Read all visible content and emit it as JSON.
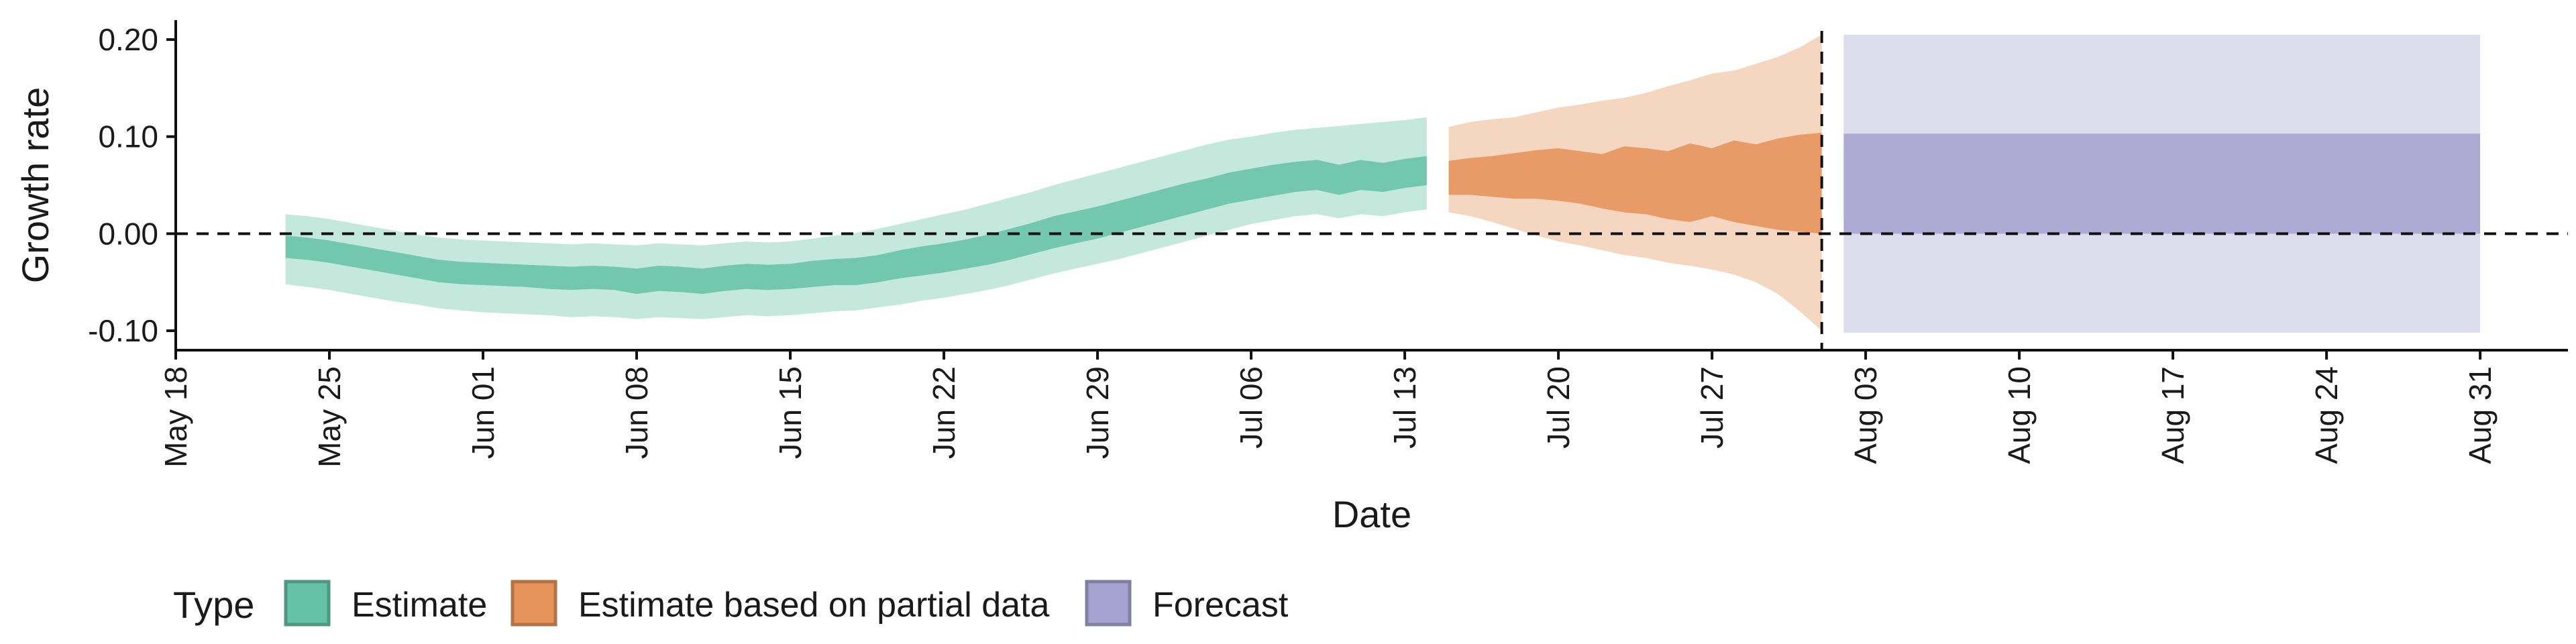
{
  "chart_data": {
    "type": "area",
    "xlabel": "Date",
    "ylabel": "Growth rate",
    "ylim": [
      -0.12,
      0.22
    ],
    "xlim": [
      "2020-05-18",
      "2020-09-04"
    ],
    "grid": false,
    "legend_position": "bottom-left",
    "legend_title": "Type",
    "y_ticks": [
      -0.1,
      0.0,
      0.1,
      0.2
    ],
    "y_tick_labels": [
      "-0.10",
      "0.00",
      "0.10",
      "0.20"
    ],
    "x_ticks": [
      "2020-05-18",
      "2020-05-25",
      "2020-06-01",
      "2020-06-08",
      "2020-06-15",
      "2020-06-22",
      "2020-06-29",
      "2020-07-06",
      "2020-07-13",
      "2020-07-20",
      "2020-07-27",
      "2020-08-03",
      "2020-08-10",
      "2020-08-17",
      "2020-08-24",
      "2020-08-31"
    ],
    "x_tick_labels": [
      "May 18",
      "May 25",
      "Jun 01",
      "Jun 08",
      "Jun 15",
      "Jun 22",
      "Jun 29",
      "Jul 06",
      "Jul 13",
      "Jul 20",
      "Jul 27",
      "Aug 03",
      "Aug 10",
      "Aug 17",
      "Aug 24",
      "Aug 31"
    ],
    "hlines": [
      {
        "y": 0.0,
        "style": "dashed"
      }
    ],
    "vlines": [
      {
        "x": "2020-08-01",
        "style": "dashed"
      }
    ],
    "series": [
      {
        "name": "Estimate",
        "color": "#66c2a5",
        "x": [
          "2020-05-23",
          "2020-05-24",
          "2020-05-25",
          "2020-05-26",
          "2020-05-27",
          "2020-05-28",
          "2020-05-29",
          "2020-05-30",
          "2020-05-31",
          "2020-06-01",
          "2020-06-02",
          "2020-06-03",
          "2020-06-04",
          "2020-06-05",
          "2020-06-06",
          "2020-06-07",
          "2020-06-08",
          "2020-06-09",
          "2020-06-10",
          "2020-06-11",
          "2020-06-12",
          "2020-06-13",
          "2020-06-14",
          "2020-06-15",
          "2020-06-16",
          "2020-06-17",
          "2020-06-18",
          "2020-06-19",
          "2020-06-20",
          "2020-06-21",
          "2020-06-22",
          "2020-06-23",
          "2020-06-24",
          "2020-06-25",
          "2020-06-26",
          "2020-06-27",
          "2020-06-28",
          "2020-06-29",
          "2020-06-30",
          "2020-07-01",
          "2020-07-02",
          "2020-07-03",
          "2020-07-04",
          "2020-07-05",
          "2020-07-06",
          "2020-07-07",
          "2020-07-08",
          "2020-07-09",
          "2020-07-10",
          "2020-07-11",
          "2020-07-12",
          "2020-07-13",
          "2020-07-14"
        ],
        "lower_90": [
          -0.052,
          -0.055,
          -0.058,
          -0.062,
          -0.066,
          -0.07,
          -0.073,
          -0.077,
          -0.079,
          -0.081,
          -0.082,
          -0.083,
          -0.084,
          -0.086,
          -0.085,
          -0.086,
          -0.088,
          -0.086,
          -0.087,
          -0.088,
          -0.086,
          -0.084,
          -0.085,
          -0.084,
          -0.082,
          -0.08,
          -0.079,
          -0.076,
          -0.073,
          -0.069,
          -0.066,
          -0.062,
          -0.058,
          -0.053,
          -0.047,
          -0.041,
          -0.036,
          -0.031,
          -0.026,
          -0.02,
          -0.014,
          -0.008,
          -0.002,
          0.004,
          0.01,
          0.014,
          0.018,
          0.02,
          0.016,
          0.02,
          0.018,
          0.022,
          0.025
        ],
        "lower_50": [
          -0.025,
          -0.027,
          -0.03,
          -0.034,
          -0.038,
          -0.042,
          -0.046,
          -0.05,
          -0.052,
          -0.053,
          -0.054,
          -0.055,
          -0.057,
          -0.058,
          -0.057,
          -0.058,
          -0.062,
          -0.059,
          -0.06,
          -0.062,
          -0.059,
          -0.057,
          -0.058,
          -0.057,
          -0.055,
          -0.053,
          -0.053,
          -0.05,
          -0.046,
          -0.043,
          -0.04,
          -0.036,
          -0.032,
          -0.027,
          -0.021,
          -0.015,
          -0.01,
          -0.005,
          0.001,
          0.007,
          0.013,
          0.019,
          0.025,
          0.031,
          0.035,
          0.039,
          0.043,
          0.045,
          0.04,
          0.045,
          0.043,
          0.047,
          0.05
        ],
        "upper_50": [
          -0.002,
          -0.004,
          -0.007,
          -0.011,
          -0.015,
          -0.019,
          -0.023,
          -0.027,
          -0.029,
          -0.03,
          -0.031,
          -0.032,
          -0.033,
          -0.034,
          -0.033,
          -0.034,
          -0.036,
          -0.033,
          -0.034,
          -0.036,
          -0.033,
          -0.031,
          -0.032,
          -0.031,
          -0.028,
          -0.026,
          -0.025,
          -0.022,
          -0.017,
          -0.013,
          -0.01,
          -0.006,
          -0.001,
          0.005,
          0.011,
          0.018,
          0.023,
          0.028,
          0.034,
          0.04,
          0.046,
          0.052,
          0.057,
          0.063,
          0.067,
          0.071,
          0.074,
          0.076,
          0.071,
          0.076,
          0.073,
          0.077,
          0.08
        ],
        "upper_90": [
          0.02,
          0.018,
          0.015,
          0.011,
          0.007,
          0.003,
          -0.001,
          -0.004,
          -0.006,
          -0.007,
          -0.008,
          -0.009,
          -0.01,
          -0.011,
          -0.01,
          -0.011,
          -0.012,
          -0.01,
          -0.011,
          -0.012,
          -0.01,
          -0.008,
          -0.009,
          -0.008,
          -0.005,
          -0.002,
          0.001,
          0.005,
          0.01,
          0.015,
          0.02,
          0.025,
          0.031,
          0.037,
          0.043,
          0.05,
          0.056,
          0.062,
          0.068,
          0.074,
          0.08,
          0.086,
          0.092,
          0.097,
          0.1,
          0.104,
          0.107,
          0.109,
          0.111,
          0.113,
          0.115,
          0.117,
          0.12
        ]
      },
      {
        "name": "Estimate based on partial data",
        "color": "#e6935a",
        "x": [
          "2020-07-15",
          "2020-07-16",
          "2020-07-17",
          "2020-07-18",
          "2020-07-19",
          "2020-07-20",
          "2020-07-21",
          "2020-07-22",
          "2020-07-23",
          "2020-07-24",
          "2020-07-25",
          "2020-07-26",
          "2020-07-27",
          "2020-07-28",
          "2020-07-29",
          "2020-07-30",
          "2020-07-31",
          "2020-08-01"
        ],
        "lower_90": [
          0.022,
          0.018,
          0.012,
          0.005,
          -0.002,
          -0.008,
          -0.012,
          -0.017,
          -0.022,
          -0.025,
          -0.03,
          -0.033,
          -0.037,
          -0.042,
          -0.05,
          -0.062,
          -0.08,
          -0.1
        ],
        "lower_50": [
          0.04,
          0.04,
          0.038,
          0.036,
          0.036,
          0.034,
          0.031,
          0.026,
          0.022,
          0.02,
          0.015,
          0.012,
          0.018,
          0.012,
          0.008,
          0.004,
          0.002,
          0.0
        ],
        "upper_50": [
          0.075,
          0.078,
          0.08,
          0.083,
          0.086,
          0.088,
          0.085,
          0.082,
          0.09,
          0.088,
          0.085,
          0.093,
          0.088,
          0.096,
          0.092,
          0.098,
          0.102,
          0.104
        ],
        "upper_90": [
          0.11,
          0.115,
          0.118,
          0.12,
          0.125,
          0.13,
          0.133,
          0.137,
          0.14,
          0.145,
          0.152,
          0.158,
          0.165,
          0.168,
          0.175,
          0.182,
          0.192,
          0.205
        ]
      },
      {
        "name": "Forecast",
        "color": "#a6a3d0",
        "x": [
          "2020-08-02",
          "2020-08-31"
        ],
        "lower_90": [
          -0.102,
          -0.102
        ],
        "lower_50": [
          0.0,
          0.0
        ],
        "upper_50": [
          0.103,
          0.103
        ],
        "upper_90": [
          0.205,
          0.205
        ]
      }
    ]
  }
}
